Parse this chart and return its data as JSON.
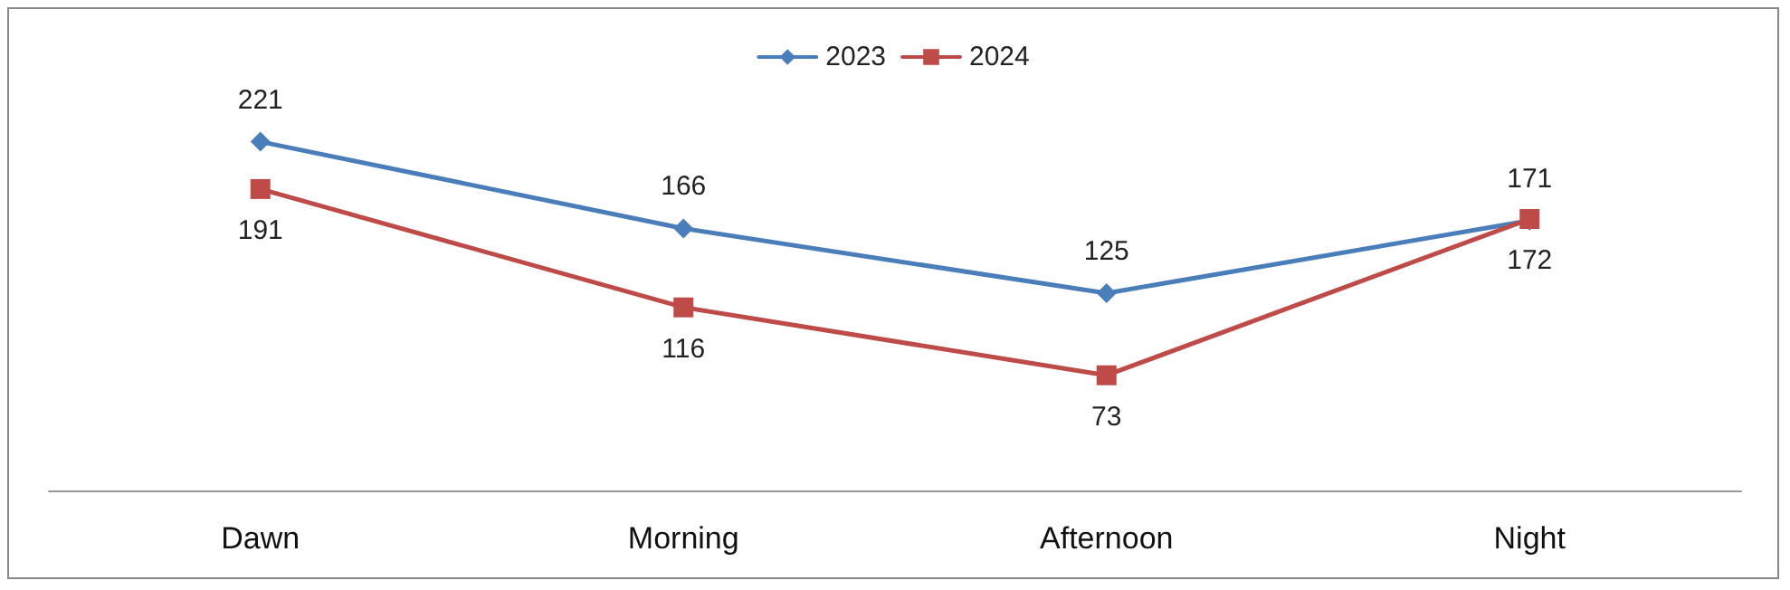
{
  "chart_data": {
    "type": "line",
    "categories": [
      "Dawn",
      "Morning",
      "Afternoon",
      "Night"
    ],
    "series": [
      {
        "name": "2023",
        "color": "#4a7ebb",
        "marker": "diamond",
        "values": [
          221,
          166,
          125,
          171
        ]
      },
      {
        "name": "2024",
        "color": "#be4b48",
        "marker": "square",
        "values": [
          191,
          116,
          73,
          172
        ]
      }
    ],
    "data_labels": true,
    "legend": "top",
    "grid": false,
    "tick_labels": "x"
  }
}
